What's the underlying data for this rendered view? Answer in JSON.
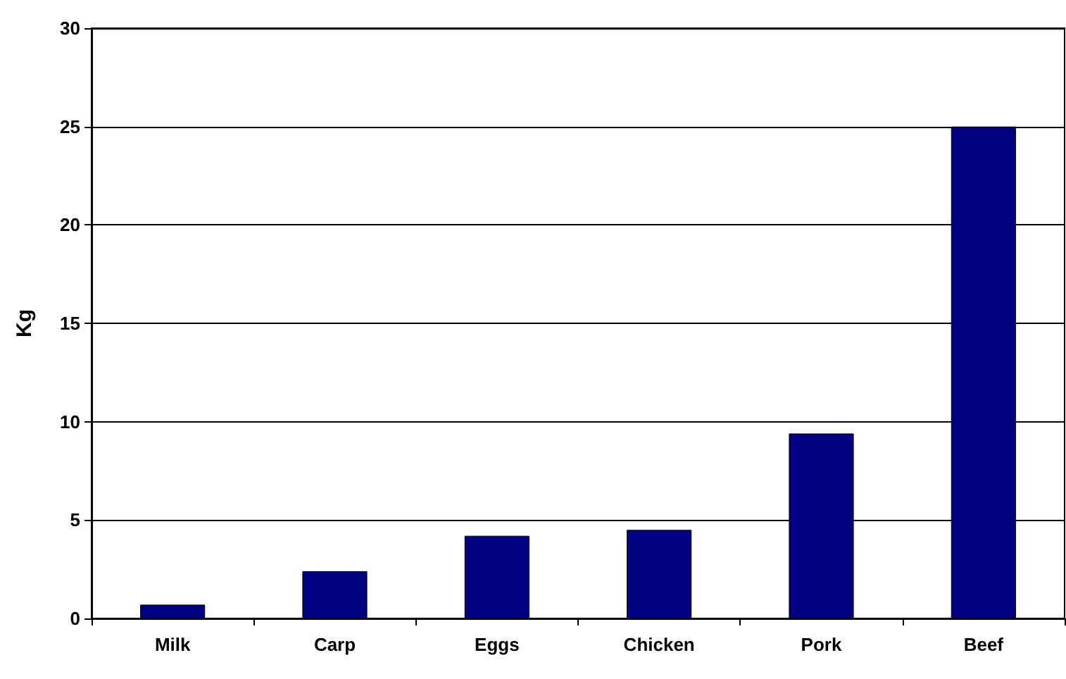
{
  "chart_data": {
    "type": "bar",
    "ylabel": "Kg",
    "categories": [
      "Milk",
      "Carp",
      "Eggs",
      "Chicken",
      "Pork",
      "Beef"
    ],
    "values": [
      0.7,
      2.4,
      4.2,
      4.5,
      9.4,
      25
    ],
    "color": "#000080",
    "ylim": [
      0,
      30
    ],
    "yticks": [
      0,
      5,
      10,
      15,
      20,
      25,
      30
    ],
    "grid": "y"
  }
}
